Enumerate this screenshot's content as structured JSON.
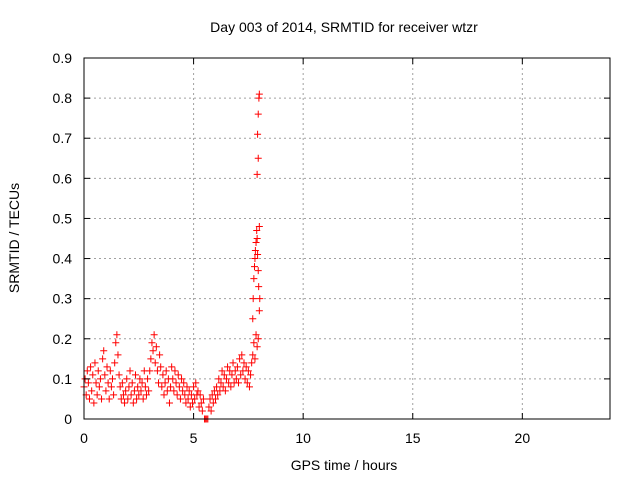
{
  "chart_data": {
    "type": "scatter",
    "title": "Day 003 of 2014, SRMTID for receiver wtzr",
    "xlabel": "GPS time / hours",
    "ylabel": "SRMTID / TECUs",
    "xlim": [
      0,
      24
    ],
    "ylim": [
      0,
      0.9
    ],
    "xticks": [
      0,
      5,
      10,
      15,
      20
    ],
    "yticks": [
      0,
      0.1,
      0.2,
      0.3,
      0.4,
      0.5,
      0.6,
      0.7,
      0.8,
      0.9
    ],
    "xtick_labels": [
      "0",
      "5",
      "10",
      "15",
      "20"
    ],
    "ytick_labels": [
      "0",
      "0.1",
      "0.2",
      "0.3",
      "0.4",
      "0.5",
      "0.6",
      "0.7",
      "0.8",
      "0.9"
    ],
    "grid": true,
    "marker": "+",
    "marker_color": "#ff0000",
    "series": [
      {
        "name": "SRMTID",
        "points": [
          [
            0.0,
            0.08
          ],
          [
            0.05,
            0.1
          ],
          [
            0.1,
            0.06
          ],
          [
            0.15,
            0.12
          ],
          [
            0.2,
            0.09
          ],
          [
            0.25,
            0.05
          ],
          [
            0.3,
            0.13
          ],
          [
            0.35,
            0.07
          ],
          [
            0.4,
            0.11
          ],
          [
            0.45,
            0.04
          ],
          [
            0.5,
            0.14
          ],
          [
            0.55,
            0.09
          ],
          [
            0.6,
            0.06
          ],
          [
            0.65,
            0.12
          ],
          [
            0.7,
            0.08
          ],
          [
            0.75,
            0.1
          ],
          [
            0.8,
            0.05
          ],
          [
            0.85,
            0.15
          ],
          [
            0.9,
            0.17
          ],
          [
            0.95,
            0.11
          ],
          [
            1.0,
            0.07
          ],
          [
            1.05,
            0.13
          ],
          [
            1.1,
            0.09
          ],
          [
            1.15,
            0.05
          ],
          [
            1.2,
            0.12
          ],
          [
            1.25,
            0.08
          ],
          [
            1.3,
            0.1
          ],
          [
            1.35,
            0.06
          ],
          [
            1.4,
            0.14
          ],
          [
            1.45,
            0.19
          ],
          [
            1.5,
            0.21
          ],
          [
            1.55,
            0.16
          ],
          [
            1.6,
            0.11
          ],
          [
            1.65,
            0.08
          ],
          [
            1.7,
            0.05
          ],
          [
            1.75,
            0.09
          ],
          [
            1.8,
            0.06
          ],
          [
            1.85,
            0.04
          ],
          [
            1.9,
            0.07
          ],
          [
            1.95,
            0.1
          ],
          [
            2.0,
            0.05
          ],
          [
            2.05,
            0.08
          ],
          [
            2.1,
            0.12
          ],
          [
            2.15,
            0.06
          ],
          [
            2.2,
            0.09
          ],
          [
            2.25,
            0.04
          ],
          [
            2.3,
            0.07
          ],
          [
            2.35,
            0.11
          ],
          [
            2.4,
            0.05
          ],
          [
            2.45,
            0.08
          ],
          [
            2.5,
            0.06
          ],
          [
            2.55,
            0.1
          ],
          [
            2.6,
            0.07
          ],
          [
            2.65,
            0.09
          ],
          [
            2.7,
            0.05
          ],
          [
            2.75,
            0.12
          ],
          [
            2.8,
            0.08
          ],
          [
            2.85,
            0.06
          ],
          [
            2.9,
            0.1
          ],
          [
            2.95,
            0.07
          ],
          [
            3.0,
            0.12
          ],
          [
            3.05,
            0.15
          ],
          [
            3.1,
            0.19
          ],
          [
            3.15,
            0.17
          ],
          [
            3.2,
            0.21
          ],
          [
            3.25,
            0.14
          ],
          [
            3.3,
            0.18
          ],
          [
            3.35,
            0.12
          ],
          [
            3.4,
            0.09
          ],
          [
            3.45,
            0.16
          ],
          [
            3.5,
            0.13
          ],
          [
            3.55,
            0.08
          ],
          [
            3.6,
            0.11
          ],
          [
            3.65,
            0.06
          ],
          [
            3.7,
            0.09
          ],
          [
            3.75,
            0.12
          ],
          [
            3.8,
            0.07
          ],
          [
            3.85,
            0.1
          ],
          [
            3.9,
            0.04
          ],
          [
            3.95,
            0.08
          ],
          [
            4.0,
            0.13
          ],
          [
            4.05,
            0.1
          ],
          [
            4.1,
            0.07
          ],
          [
            4.15,
            0.12
          ],
          [
            4.2,
            0.09
          ],
          [
            4.25,
            0.06
          ],
          [
            4.3,
            0.11
          ],
          [
            4.35,
            0.08
          ],
          [
            4.4,
            0.05
          ],
          [
            4.45,
            0.1
          ],
          [
            4.5,
            0.07
          ],
          [
            4.55,
            0.09
          ],
          [
            4.6,
            0.06
          ],
          [
            4.65,
            0.04
          ],
          [
            4.7,
            0.08
          ],
          [
            4.75,
            0.05
          ],
          [
            4.8,
            0.07
          ],
          [
            4.85,
            0.03
          ],
          [
            4.9,
            0.06
          ],
          [
            4.95,
            0.04
          ],
          [
            5.0,
            0.08
          ],
          [
            5.05,
            0.05
          ],
          [
            5.1,
            0.09
          ],
          [
            5.15,
            0.06
          ],
          [
            5.2,
            0.07
          ],
          [
            5.25,
            0.03
          ],
          [
            5.3,
            0.06
          ],
          [
            5.35,
            0.04
          ],
          [
            5.4,
            0.02
          ],
          [
            5.45,
            0.05
          ],
          [
            5.5,
            0.0
          ],
          [
            5.55,
            0.0
          ],
          [
            5.6,
            0.0
          ],
          [
            5.65,
            0.0
          ],
          [
            5.7,
            0.03
          ],
          [
            5.75,
            0.05
          ],
          [
            5.8,
            0.02
          ],
          [
            5.85,
            0.06
          ],
          [
            5.9,
            0.04
          ],
          [
            5.95,
            0.07
          ],
          [
            6.0,
            0.05
          ],
          [
            6.05,
            0.08
          ],
          [
            6.1,
            0.06
          ],
          [
            6.15,
            0.1
          ],
          [
            6.2,
            0.07
          ],
          [
            6.25,
            0.09
          ],
          [
            6.3,
            0.12
          ],
          [
            6.35,
            0.08
          ],
          [
            6.4,
            0.11
          ],
          [
            6.45,
            0.07
          ],
          [
            6.5,
            0.1
          ],
          [
            6.55,
            0.13
          ],
          [
            6.6,
            0.09
          ],
          [
            6.65,
            0.12
          ],
          [
            6.7,
            0.08
          ],
          [
            6.75,
            0.11
          ],
          [
            6.8,
            0.14
          ],
          [
            6.85,
            0.09
          ],
          [
            6.9,
            0.12
          ],
          [
            6.95,
            0.1
          ],
          [
            7.0,
            0.13
          ],
          [
            7.05,
            0.09
          ],
          [
            7.1,
            0.15
          ],
          [
            7.15,
            0.11
          ],
          [
            7.2,
            0.16
          ],
          [
            7.25,
            0.12
          ],
          [
            7.3,
            0.14
          ],
          [
            7.35,
            0.1
          ],
          [
            7.4,
            0.13
          ],
          [
            7.45,
            0.09
          ],
          [
            7.5,
            0.12
          ],
          [
            7.55,
            0.08
          ],
          [
            7.6,
            0.11
          ],
          [
            7.65,
            0.14
          ],
          [
            7.7,
            0.16
          ],
          [
            7.75,
            0.19
          ],
          [
            7.8,
            0.15
          ],
          [
            7.85,
            0.21
          ],
          [
            7.9,
            0.18
          ],
          [
            7.95,
            0.2
          ],
          [
            7.7,
            0.25
          ],
          [
            7.72,
            0.3
          ],
          [
            7.75,
            0.35
          ],
          [
            7.78,
            0.38
          ],
          [
            7.8,
            0.4
          ],
          [
            7.82,
            0.42
          ],
          [
            7.85,
            0.44
          ],
          [
            7.88,
            0.47
          ],
          [
            7.9,
            0.45
          ],
          [
            7.92,
            0.41
          ],
          [
            7.95,
            0.37
          ],
          [
            7.97,
            0.33
          ],
          [
            8.0,
            0.48
          ],
          [
            8.02,
            0.3
          ],
          [
            8.0,
            0.27
          ],
          [
            7.9,
            0.61
          ],
          [
            7.95,
            0.65
          ],
          [
            7.92,
            0.71
          ],
          [
            7.95,
            0.76
          ],
          [
            7.98,
            0.8
          ],
          [
            8.0,
            0.81
          ]
        ]
      }
    ]
  }
}
